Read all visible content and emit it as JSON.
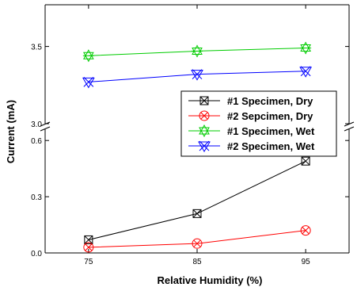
{
  "chart_data": {
    "type": "line",
    "title": "",
    "xlabel": "Relative Humidity (%)",
    "ylabel": "Current (mA)",
    "x": [
      75,
      85,
      95
    ],
    "x_tick_labels": [
      "75",
      "85",
      "95"
    ],
    "y_axis": {
      "broken": true,
      "lower_range": [
        0.0,
        0.66
      ],
      "upper_range": [
        3.0,
        3.77
      ],
      "lower_ticks": [
        0.0,
        0.3,
        0.6
      ],
      "lower_tick_labels": [
        "0.0",
        "0.3",
        "0.6"
      ],
      "upper_ticks": [
        3.0,
        3.5
      ],
      "upper_tick_labels": [
        "3.0",
        "3.5"
      ]
    },
    "xlim": [
      71,
      99
    ],
    "grid": false,
    "legend_position": "middle-right",
    "series": [
      {
        "name": "#1 Specimen, Dry",
        "values": [
          0.07,
          0.21,
          0.49
        ],
        "color": "#000000",
        "marker": "boxed-x"
      },
      {
        "name": "#2 Sepcimen, Dry",
        "values": [
          0.03,
          0.05,
          0.12
        ],
        "color": "#ff0000",
        "marker": "circled-x"
      },
      {
        "name": "#1 Specimen, Wet",
        "values": [
          3.44,
          3.47,
          3.49
        ],
        "color": "#00cc00",
        "marker": "star"
      },
      {
        "name": "#2 Specimen, Wet",
        "values": [
          3.27,
          3.32,
          3.34
        ],
        "color": "#0000ff",
        "marker": "down-triangle-x"
      }
    ]
  }
}
